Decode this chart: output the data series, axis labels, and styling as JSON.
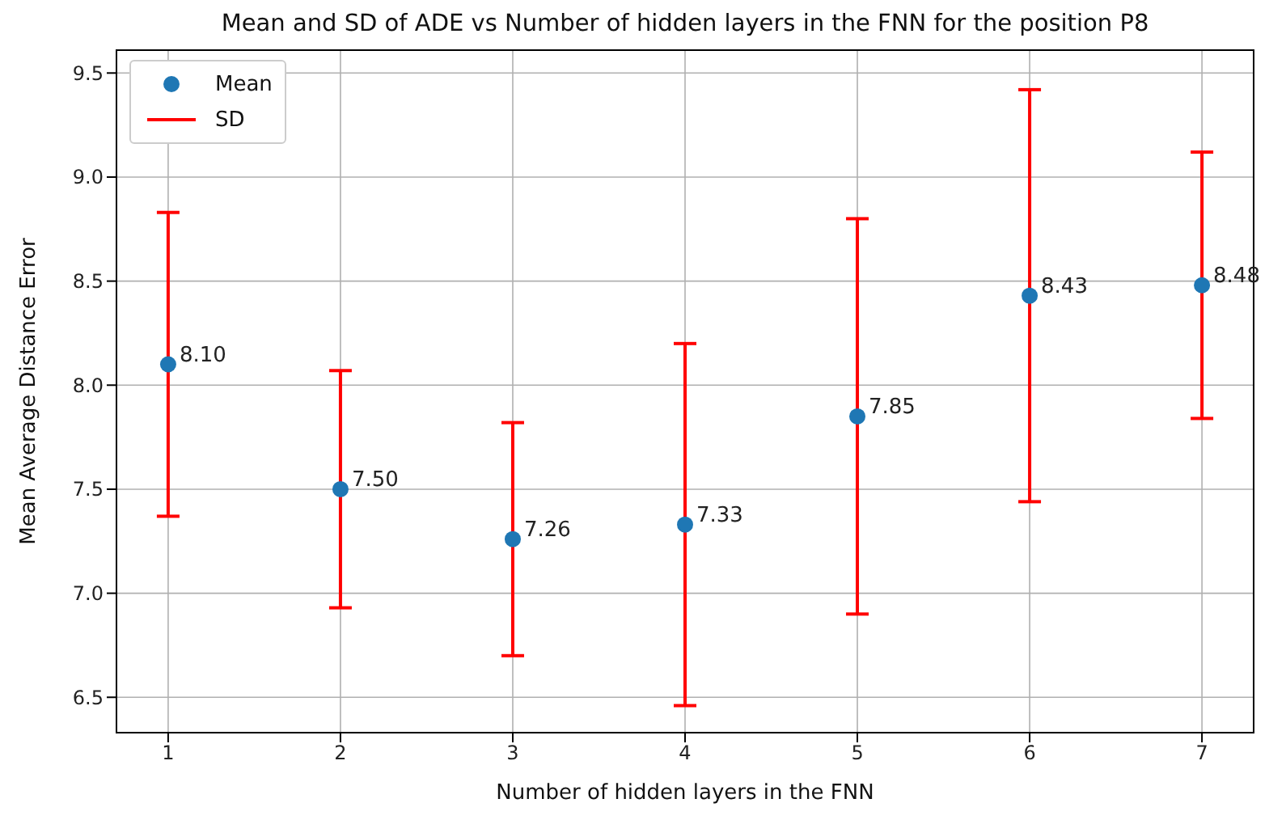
{
  "chart_data": {
    "type": "scatter",
    "title": "Mean and SD of ADE vs Number of hidden layers in the FNN for the position P8",
    "xlabel": "Number of hidden layers in the FNN",
    "ylabel": "Mean Average Distance Error",
    "x": [
      1,
      2,
      3,
      4,
      5,
      6,
      7
    ],
    "series": [
      {
        "name": "Mean",
        "color": "#1f77b4",
        "marker": "circle",
        "values": [
          8.1,
          7.5,
          7.26,
          7.33,
          7.85,
          8.43,
          8.48
        ],
        "value_labels": [
          "8.10",
          "7.50",
          "7.26",
          "7.33",
          "7.85",
          "8.43",
          "8.48"
        ],
        "errors": [
          0.73,
          0.57,
          0.56,
          0.87,
          0.95,
          0.99,
          0.64
        ]
      },
      {
        "name": "SD",
        "color": "#ff0000",
        "marker": "none",
        "values": [
          null,
          null,
          null,
          null,
          null,
          null,
          null
        ]
      }
    ],
    "xlim": [
      0.7,
      7.3
    ],
    "xticks": [
      1,
      2,
      3,
      4,
      5,
      6,
      7
    ],
    "ylim": [
      6.33,
      9.61
    ],
    "yticks": [
      6.5,
      {
        "value": 7,
        "label": "7.0"
      },
      7.5,
      {
        "value": 8,
        "label": "8.0"
      },
      8.5,
      {
        "value": 9,
        "label": "9.0"
      },
      9.5
    ],
    "grid": true,
    "legend": "top left"
  }
}
